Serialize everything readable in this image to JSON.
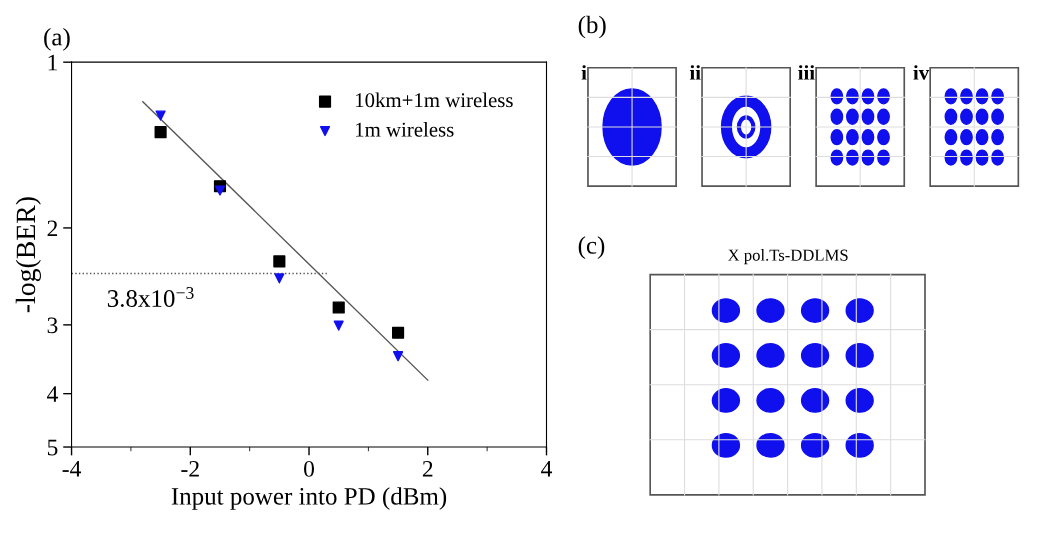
{
  "chart_data": [
    {
      "type": "scatter",
      "title": "(a)",
      "xlabel": "Input power into PD (dBm)",
      "ylabel": "-log(BER)",
      "log": "y",
      "xlim": [
        -4,
        4
      ],
      "xticks": [
        -4,
        -2,
        0,
        2,
        4
      ],
      "ylim": [
        5,
        1
      ],
      "yticks": [
        1,
        2,
        3,
        4,
        5
      ],
      "x": [
        -2.5,
        -1.5,
        -0.5,
        0.5,
        1.5
      ],
      "legend": "top right",
      "grid": false,
      "series": [
        {
          "name": "10km+1m wireless",
          "color": "#000000",
          "marker": "square",
          "values": [
            1.34,
            1.68,
            2.3,
            2.79,
            3.1
          ]
        },
        {
          "name": "1m wireless",
          "color": "#1010ee",
          "marker": "triangle",
          "values": [
            1.25,
            1.71,
            2.47,
            3.01,
            3.42
          ]
        },
        {
          "type": "line",
          "color": "#555555",
          "marker": "none",
          "line_style": "solid",
          "x": [
            -2.8,
            2.0
          ],
          "values": [
            1.18,
            3.78
          ]
        },
        {
          "type": "line",
          "color": "#555555",
          "marker": "none",
          "line_style": "dotted",
          "x": [
            -4,
            0.3
          ],
          "values": [
            2.42,
            2.42
          ]
        }
      ],
      "annotations": [
        "3.8x10$^{−3}$"
      ]
    },
    {
      "type": "other",
      "title": "(b)",
      "annotations": [
        "i",
        "ii",
        "iii",
        "iv"
      ]
    },
    {
      "type": "other",
      "title": "(c)",
      "subtitle": "X pol.Ts-DDLMS"
    }
  ]
}
